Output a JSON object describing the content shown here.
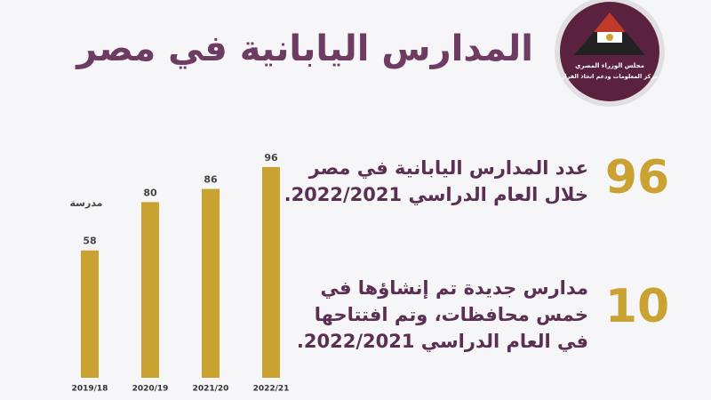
{
  "logo": {
    "line1": "مجلس الوزراء المصري",
    "line2": "مركز المعلومات ودعم اتخاذ القرار"
  },
  "chart_data": {
    "type": "bar",
    "title": "المدارس اليابانية في مصر",
    "unit_label": "مدرسة",
    "categories": [
      "2019/18",
      "2020/19",
      "2021/20",
      "2022/21"
    ],
    "values": [
      58,
      80,
      86,
      96
    ],
    "color": "#c9a232",
    "ylim": [
      0,
      100
    ]
  },
  "stats": [
    {
      "number": "96",
      "lines": [
        "عدد المدارس اليابانية في مصر",
        "خلال العام الدراسي 2022/2021."
      ]
    },
    {
      "number": "10",
      "lines": [
        "مدارس جديدة تم إنشاؤها في",
        "خمس محافظات، وتم افتتاحها",
        "في العام الدراسي 2022/2021."
      ]
    }
  ]
}
